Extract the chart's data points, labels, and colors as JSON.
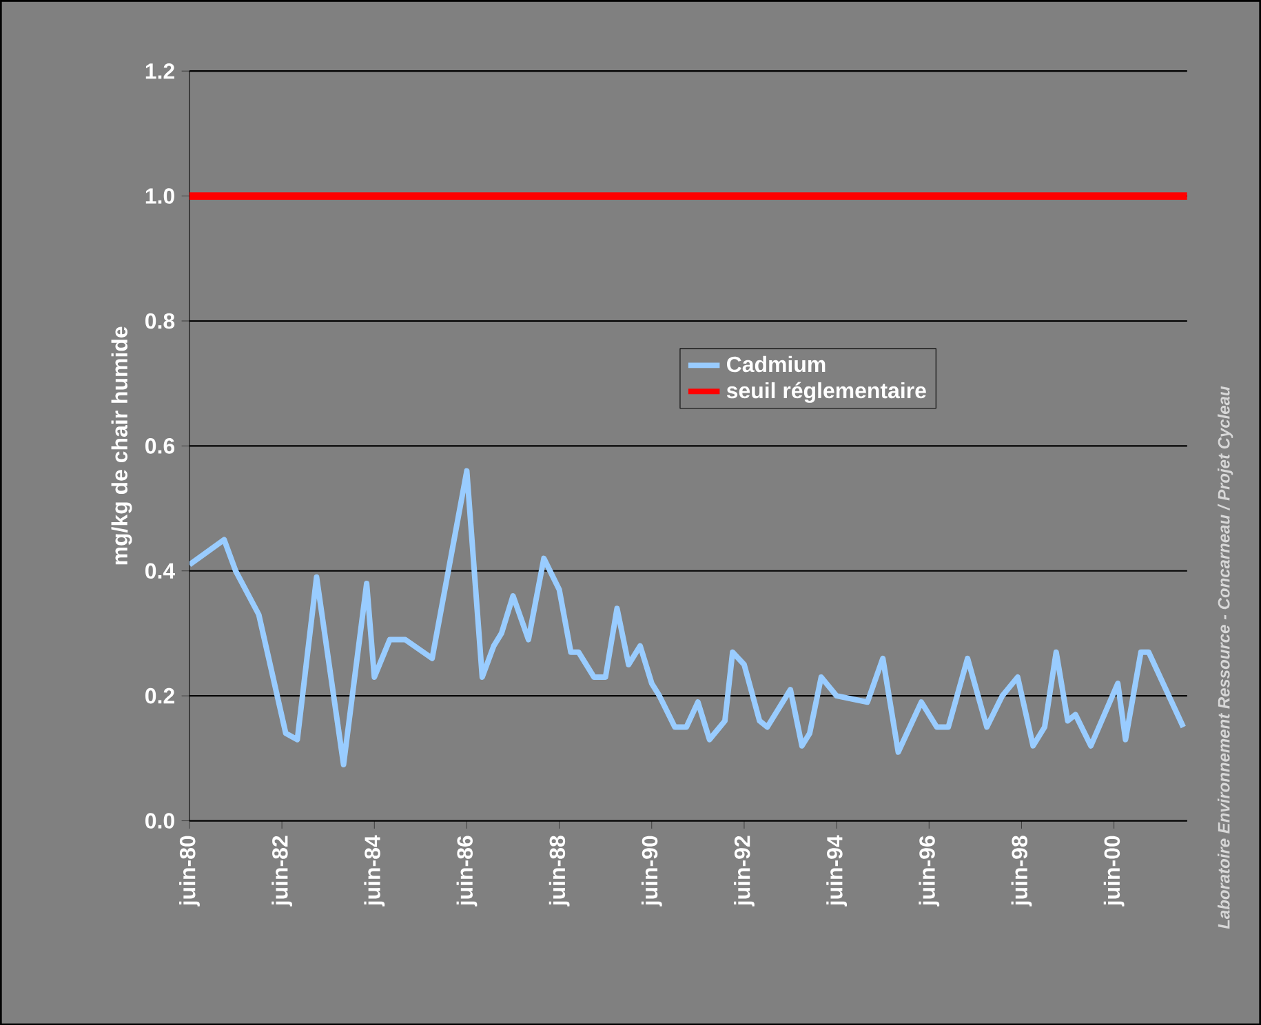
{
  "chart_data": {
    "type": "line",
    "ylabel": "mg/kg de chair humide",
    "x": [
      "1980-06",
      "1981-03",
      "1981-06",
      "1981-12",
      "1982-07",
      "1982-10",
      "1983-03",
      "1983-10",
      "1984-04",
      "1984-06",
      "1984-10",
      "1985-02",
      "1985-09",
      "1986-06",
      "1986-10",
      "1987-01",
      "1987-03",
      "1987-06",
      "1987-10",
      "1988-02",
      "1988-06",
      "1988-09",
      "1988-11",
      "1989-03",
      "1989-06",
      "1989-09",
      "1989-12",
      "1990-03",
      "1990-06",
      "1990-08",
      "1990-12",
      "1991-03",
      "1991-06",
      "1991-09",
      "1992-01",
      "1992-03",
      "1992-06",
      "1992-10",
      "1992-12",
      "1993-06",
      "1993-09",
      "1993-11",
      "1994-02",
      "1994-06",
      "1995-02",
      "1995-06",
      "1995-10",
      "1996-04",
      "1996-08",
      "1996-11",
      "1997-04",
      "1997-09",
      "1998-01",
      "1998-05",
      "1998-09",
      "1998-12",
      "1999-03",
      "1999-06",
      "1999-08",
      "1999-12",
      "2000-07",
      "2000-09",
      "2001-01",
      "2001-03",
      "2001-12"
    ],
    "series": [
      {
        "name": "Cadmium",
        "color": "#99ccff",
        "values": [
          0.41,
          0.45,
          0.4,
          0.33,
          0.14,
          0.13,
          0.39,
          0.09,
          0.38,
          0.23,
          0.29,
          0.29,
          0.26,
          0.56,
          0.23,
          0.28,
          0.3,
          0.36,
          0.29,
          0.42,
          0.37,
          0.27,
          0.27,
          0.23,
          0.23,
          0.34,
          0.25,
          0.28,
          0.22,
          0.2,
          0.15,
          0.15,
          0.19,
          0.13,
          0.16,
          0.27,
          0.25,
          0.16,
          0.15,
          0.21,
          0.12,
          0.14,
          0.23,
          0.2,
          0.19,
          0.26,
          0.11,
          0.19,
          0.15,
          0.15,
          0.26,
          0.15,
          0.2,
          0.23,
          0.12,
          0.15,
          0.27,
          0.16,
          0.17,
          0.12,
          0.22,
          0.13,
          0.27,
          0.27,
          0.15
        ]
      }
    ],
    "ref_lines": [
      {
        "axis": "y",
        "value": 1.0,
        "label": "seuil réglementaire",
        "color": "#ff0000"
      }
    ],
    "xlim": [
      "1980-06",
      "2002-01"
    ],
    "xticks": [
      {
        "value": "1980-06",
        "label": "juin-80"
      },
      {
        "value": "1982-06",
        "label": "juin-82"
      },
      {
        "value": "1984-06",
        "label": "juin-84"
      },
      {
        "value": "1986-06",
        "label": "juin-86"
      },
      {
        "value": "1988-06",
        "label": "juin-88"
      },
      {
        "value": "1990-06",
        "label": "juin-90"
      },
      {
        "value": "1992-06",
        "label": "juin-92"
      },
      {
        "value": "1994-06",
        "label": "juin-94"
      },
      {
        "value": "1996-06",
        "label": "juin-96"
      },
      {
        "value": "1998-06",
        "label": "juin-98"
      },
      {
        "value": "2000-06",
        "label": "juin-00"
      }
    ],
    "ylim": [
      0,
      1.2
    ],
    "yticks": [
      {
        "value": 0,
        "label": "0.0"
      },
      {
        "value": 0.2,
        "label": "0.2"
      },
      {
        "value": 0.4,
        "label": "0.4"
      },
      {
        "value": 0.6,
        "label": "0.6"
      },
      {
        "value": 0.8,
        "label": "0.8"
      },
      {
        "value": 1.0,
        "label": "1.0"
      },
      {
        "value": 1.2,
        "label": "1.2"
      }
    ],
    "grid": "y",
    "legend": "center",
    "line_style": "solid",
    "annotations": [
      "Laboratoire Environnement Ressource - Concarneau / Projet Cycleau"
    ]
  }
}
